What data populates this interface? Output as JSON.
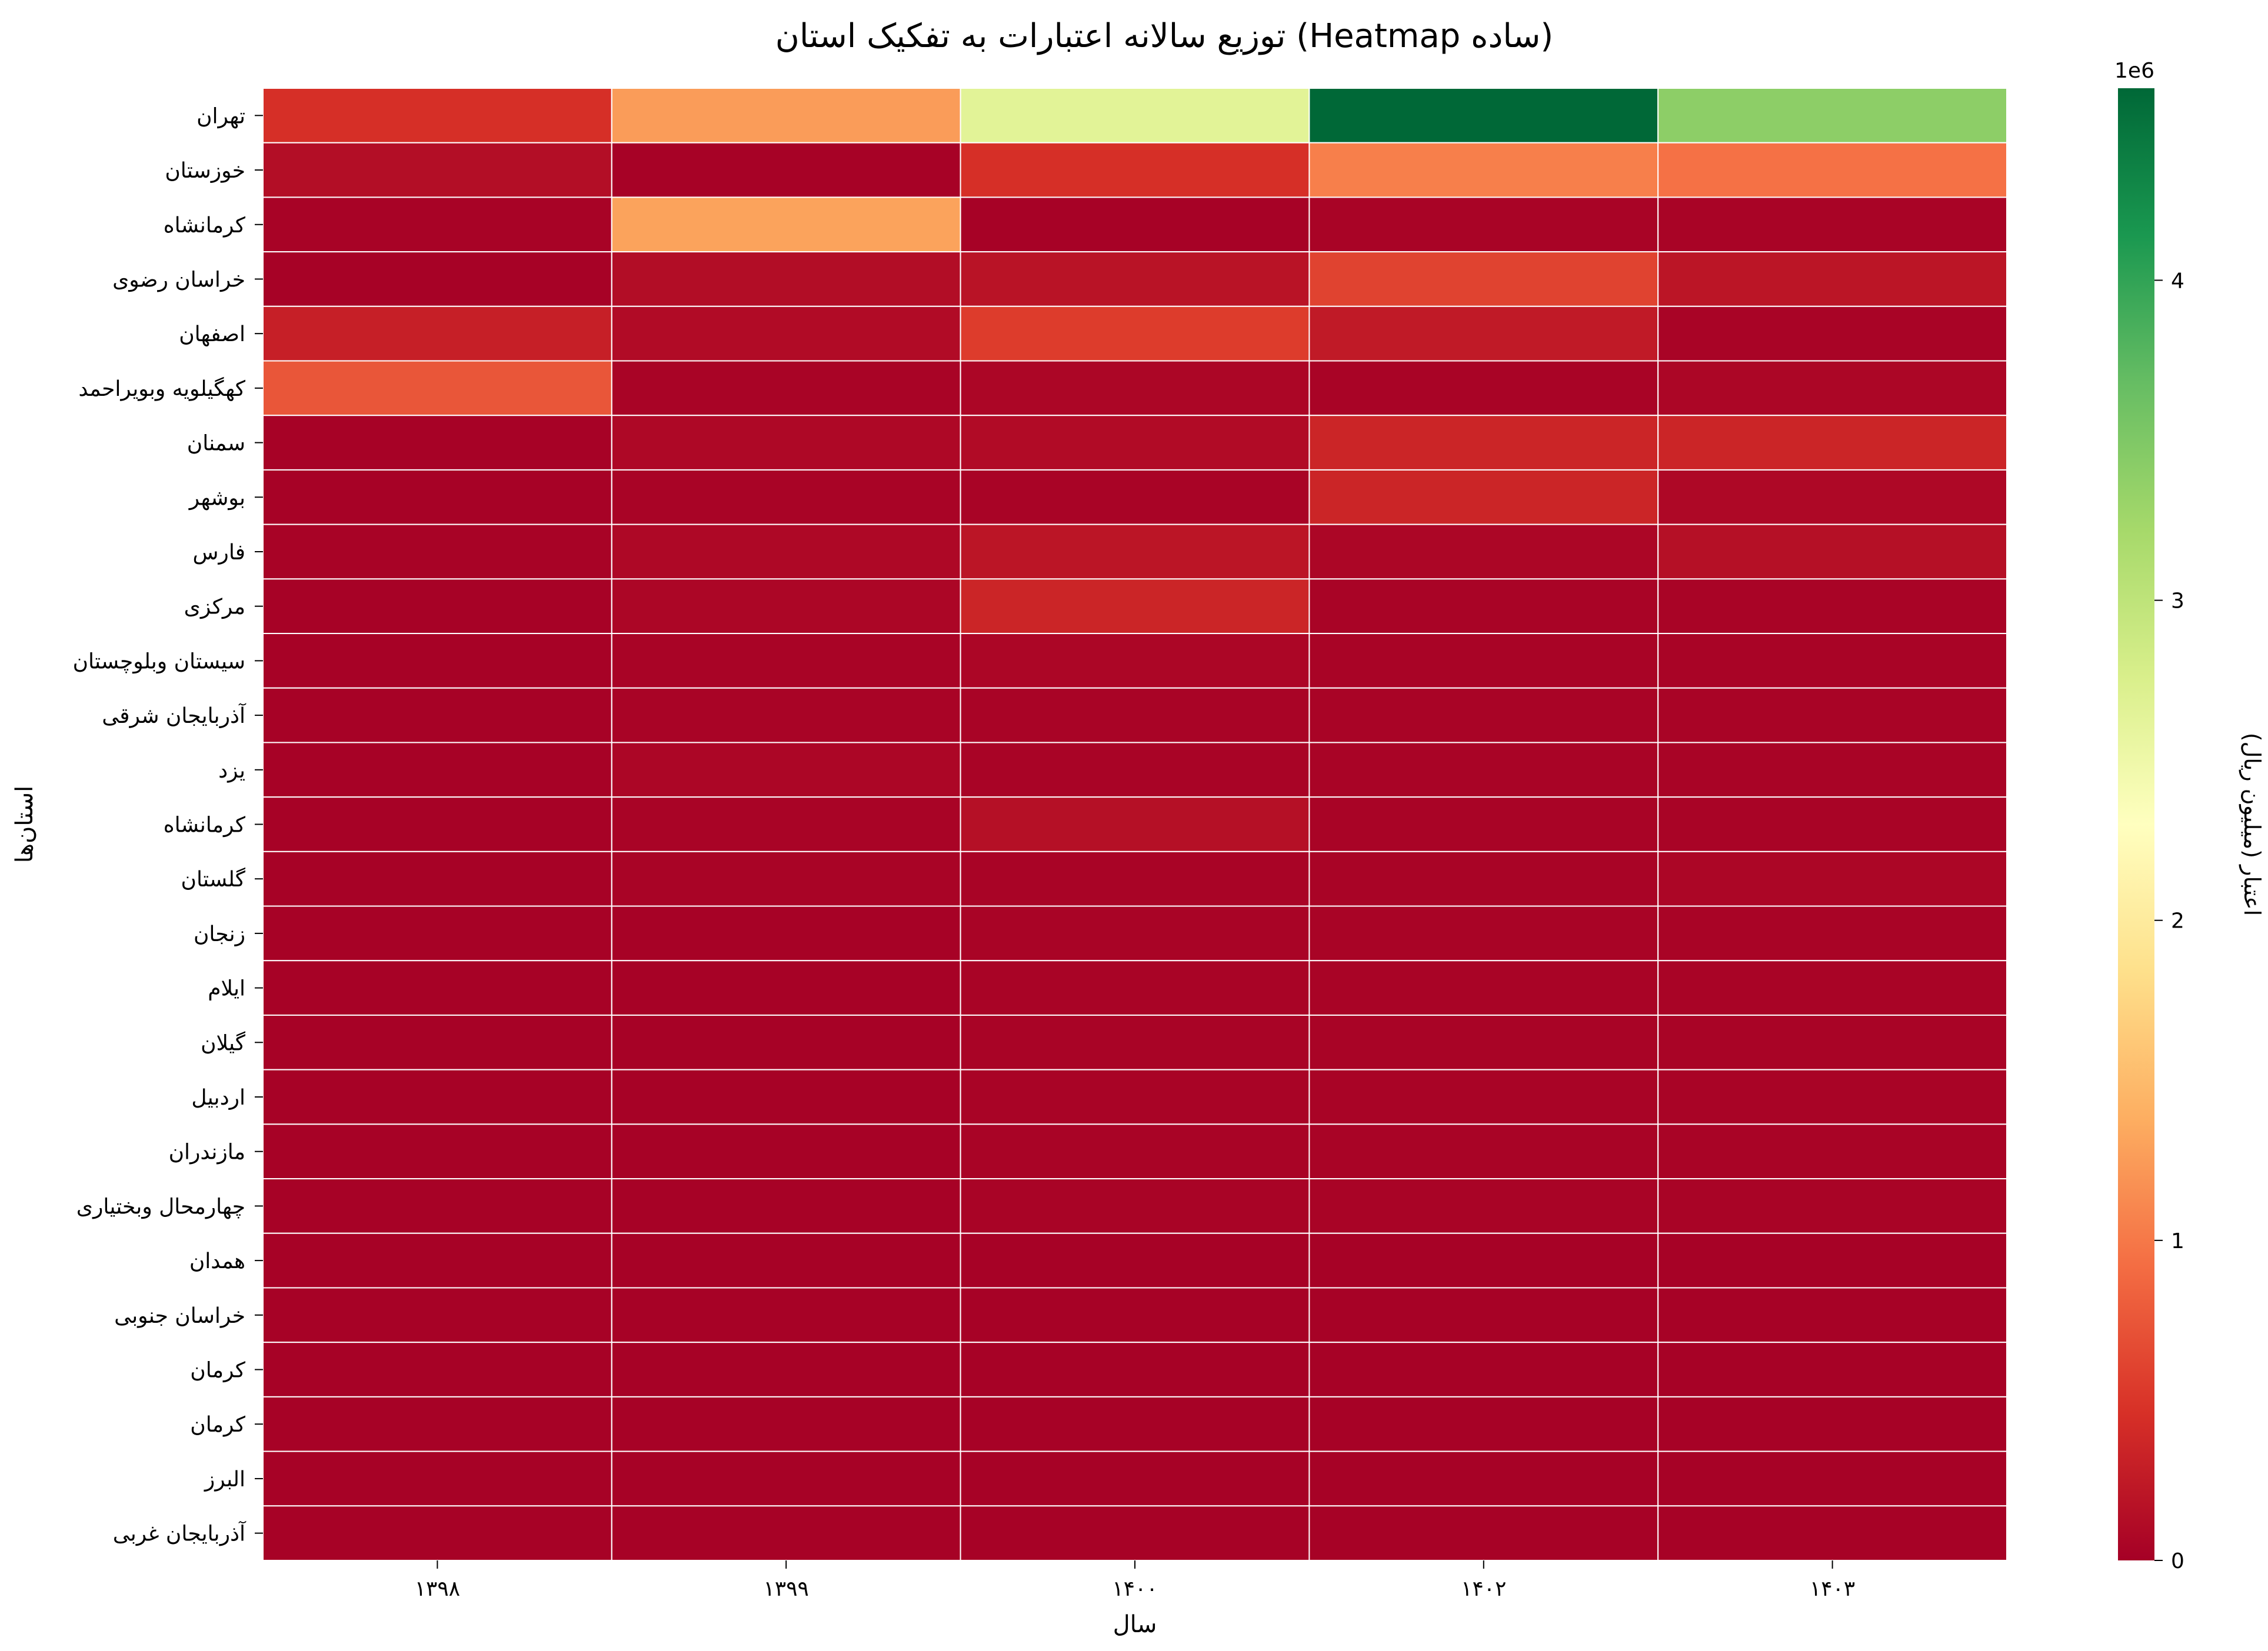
{
  "chart_data": {
    "type": "heatmap",
    "title": "توزیع سالانه اعتبارات به تفکیک استان (Heatmap ساده)",
    "xlabel": "سال",
    "ylabel": "استان‌ها",
    "x": [
      "۱۳۹۸",
      "۱۳۹۹",
      "۱۴۰۰",
      "۱۴۰۲",
      "۱۴۰۳"
    ],
    "y": [
      "تهران",
      "خوزستان",
      "کرمانشاه",
      "خراسان رضوی",
      "اصفهان",
      "کهگیلویه وبویراحمد",
      "سمنان",
      "بوشهر",
      "فارس",
      "مرکزی",
      "سیستان وبلوچستان",
      "آذربایجان شرقی",
      "یزد",
      "کرمانشاه",
      "گلستان",
      "زنجان",
      "ایلام",
      "گیلان",
      "اردبیل",
      "مازندران",
      "چهارمحال وبختیاری",
      "همدان",
      "خراسان جنوبی",
      "کرمان",
      "کرمان",
      "البرز",
      "آذربایجان غربی"
    ],
    "values": [
      [
        450000,
        1250000,
        2650000,
        4600000,
        3400000
      ],
      [
        130000,
        20000,
        450000,
        1050000,
        950000
      ],
      [
        30000,
        1300000,
        20000,
        40000,
        40000
      ],
      [
        20000,
        120000,
        180000,
        600000,
        200000
      ],
      [
        300000,
        110000,
        550000,
        250000,
        40000
      ],
      [
        750000,
        40000,
        60000,
        40000,
        60000
      ],
      [
        20000,
        80000,
        110000,
        350000,
        350000
      ],
      [
        20000,
        40000,
        40000,
        350000,
        80000
      ],
      [
        30000,
        80000,
        200000,
        60000,
        150000
      ],
      [
        20000,
        60000,
        350000,
        40000,
        40000
      ],
      [
        20000,
        40000,
        60000,
        40000,
        40000
      ],
      [
        20000,
        40000,
        40000,
        40000,
        40000
      ],
      [
        20000,
        60000,
        40000,
        40000,
        40000
      ],
      [
        20000,
        40000,
        150000,
        40000,
        40000
      ],
      [
        20000,
        40000,
        40000,
        40000,
        60000
      ],
      [
        20000,
        20000,
        40000,
        40000,
        40000
      ],
      [
        20000,
        20000,
        40000,
        40000,
        40000
      ],
      [
        20000,
        20000,
        40000,
        40000,
        40000
      ],
      [
        20000,
        20000,
        40000,
        40000,
        40000
      ],
      [
        20000,
        20000,
        40000,
        40000,
        40000
      ],
      [
        20000,
        20000,
        40000,
        40000,
        40000
      ],
      [
        20000,
        20000,
        20000,
        20000,
        20000
      ],
      [
        20000,
        20000,
        20000,
        20000,
        20000
      ],
      [
        20000,
        20000,
        20000,
        20000,
        20000
      ],
      [
        20000,
        20000,
        20000,
        20000,
        20000
      ],
      [
        20000,
        20000,
        20000,
        20000,
        20000
      ],
      [
        20000,
        20000,
        20000,
        20000,
        20000
      ]
    ],
    "colormap": "RdYlGn",
    "vmin": 0,
    "vmax": 4600000,
    "colorbar": {
      "label": "اعتبار (میلیون ریال)",
      "ticks": [
        "0",
        "1",
        "2",
        "3",
        "4"
      ],
      "tick_values": [
        0,
        1000000,
        2000000,
        3000000,
        4000000
      ],
      "offset_text": "1e6"
    },
    "cell_border_color": "#ffffff",
    "grid": false
  }
}
